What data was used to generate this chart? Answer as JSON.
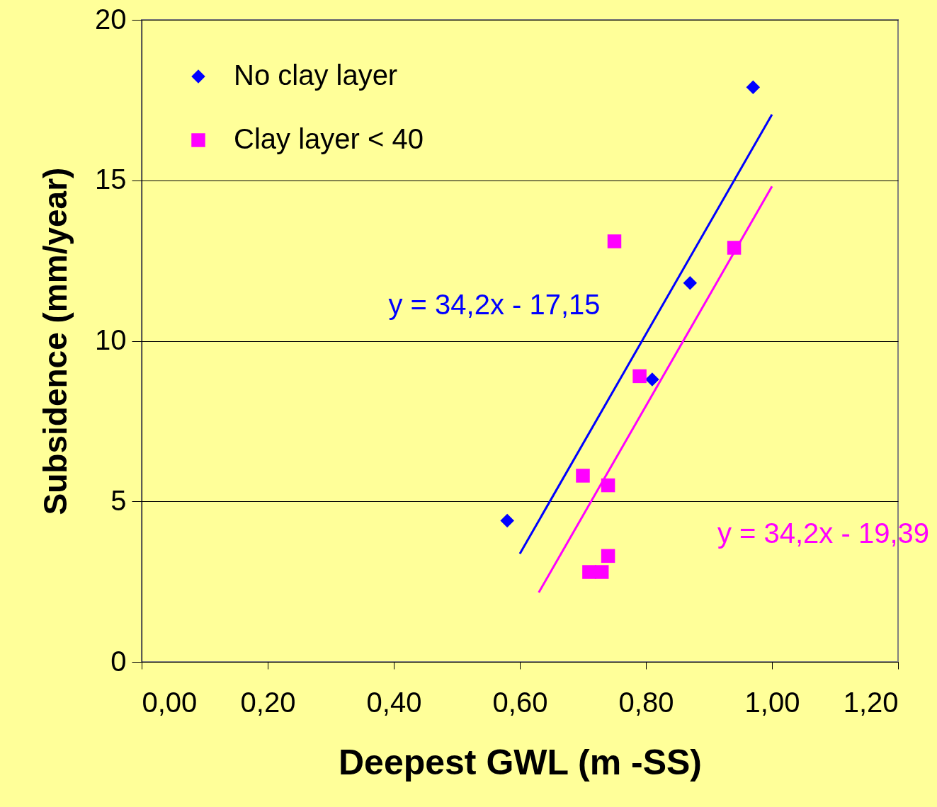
{
  "chart_data": {
    "type": "scatter",
    "xlabel": "Deepest GWL  (m -SS)",
    "ylabel": "Subsidence (mm/year)",
    "xlim": [
      0,
      1.2
    ],
    "ylim": [
      0,
      20
    ],
    "xticks": [
      {
        "value": 0,
        "label": "0,00"
      },
      {
        "value": 0.2,
        "label": "0,20"
      },
      {
        "value": 0.4,
        "label": "0,40"
      },
      {
        "value": 0.6,
        "label": "0,60"
      },
      {
        "value": 0.8,
        "label": "0,80"
      },
      {
        "value": 1.0,
        "label": "1,00"
      },
      {
        "value": 1.2,
        "label": "1,20"
      }
    ],
    "yticks": [
      0,
      5,
      10,
      15,
      20
    ],
    "grid": "y",
    "legend": "top left",
    "series": [
      {
        "name": "No clay layer",
        "color": "#0000ff",
        "marker": "diamond",
        "x": [
          0.58,
          0.81,
          0.87,
          0.97
        ],
        "values": [
          4.4,
          8.8,
          11.8,
          17.9
        ]
      },
      {
        "name": "Clay layer < 40",
        "color": "#ff00ff",
        "marker": "square",
        "x": [
          0.75,
          0.94,
          0.79,
          0.7,
          0.74,
          0.74,
          0.71,
          0.73
        ],
        "values": [
          13.1,
          12.9,
          8.9,
          5.8,
          5.5,
          3.3,
          2.8,
          2.8
        ]
      },
      {
        "type": "line",
        "color": "#0000ff",
        "x": [
          0.6,
          1.0
        ],
        "values": [
          3.37,
          17.05
        ]
      },
      {
        "type": "line",
        "color": "#ff00ff",
        "x": [
          0.63,
          1.0
        ],
        "values": [
          2.16,
          14.81
        ]
      }
    ],
    "annotations": [
      "y = 34,2x - 17,15",
      "y = 34,2x - 19,39"
    ]
  }
}
